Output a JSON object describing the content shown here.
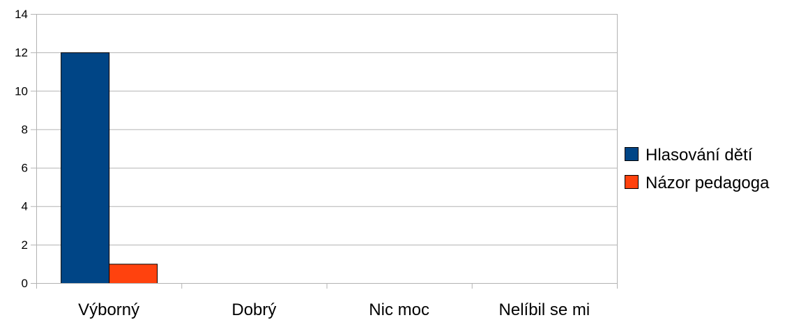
{
  "chart_data": {
    "type": "bar",
    "categories": [
      "Výborný",
      "Dobrý",
      "Nic moc",
      "Nelíbil se mi"
    ],
    "series": [
      {
        "name": "Hlasování dětí",
        "values": [
          12,
          0,
          0,
          0
        ],
        "color": "#004586"
      },
      {
        "name": "Názor pedagoga",
        "values": [
          1,
          0,
          0,
          0
        ],
        "color": "#ff420e"
      }
    ],
    "ylim": [
      0,
      14
    ],
    "yticks": [
      "0",
      "2",
      "4",
      "6",
      "8",
      "10",
      "12",
      "14"
    ],
    "grid": true,
    "legend": "right"
  }
}
